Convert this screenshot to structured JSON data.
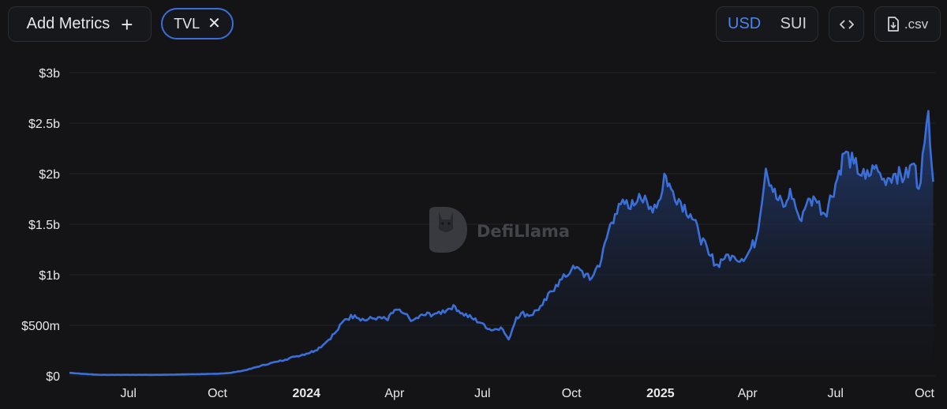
{
  "toolbar": {
    "add_metrics_label": "Add Metrics",
    "plus_icon": "+",
    "metric_chip_label": "TVL",
    "close_icon": "✕",
    "currency_options": [
      "USD",
      "SUI"
    ],
    "currency_selected": "USD",
    "embed_icon": "‹›",
    "csv_label": ".csv"
  },
  "watermark": {
    "text": "DefiLlama"
  },
  "colors": {
    "background": "#141417",
    "line": "#3b6fd8",
    "area_top": "#284b96",
    "grid": "#222328",
    "accent": "#4a84ef"
  },
  "chart_data": {
    "type": "area",
    "series": [
      {
        "x": [
          "2023-05-01",
          "2023-05-15",
          "2023-06-01",
          "2023-07-01",
          "2023-08-01",
          "2023-09-01",
          "2023-10-01",
          "2023-10-15",
          "2023-11-01",
          "2023-11-15",
          "2023-12-01",
          "2023-12-10",
          "2023-12-20",
          "2024-01-01",
          "2024-01-10",
          "2024-01-20",
          "2024-02-01",
          "2024-02-10",
          "2024-02-20",
          "2024-03-01",
          "2024-03-15",
          "2024-03-25",
          "2024-04-01",
          "2024-04-10",
          "2024-04-20",
          "2024-05-01",
          "2024-05-15",
          "2024-05-25",
          "2024-06-01",
          "2024-06-10",
          "2024-06-20",
          "2024-07-01",
          "2024-07-10",
          "2024-07-20",
          "2024-07-28",
          "2024-08-05",
          "2024-08-10",
          "2024-08-20",
          "2024-09-01",
          "2024-09-15",
          "2024-09-25",
          "2024-10-01",
          "2024-10-10",
          "2024-10-20",
          "2024-11-01",
          "2024-11-10",
          "2024-11-15",
          "2024-11-25",
          "2024-12-01",
          "2024-12-10",
          "2024-12-20",
          "2025-01-01",
          "2025-01-05",
          "2025-01-12",
          "2025-01-20",
          "2025-02-01",
          "2025-02-10",
          "2025-02-20",
          "2025-03-01",
          "2025-03-10",
          "2025-03-20",
          "2025-04-01",
          "2025-04-10",
          "2025-04-20",
          "2025-05-01",
          "2025-05-10",
          "2025-05-15",
          "2025-05-25",
          "2025-06-01",
          "2025-06-10",
          "2025-06-20",
          "2025-07-01",
          "2025-07-10",
          "2025-07-20",
          "2025-08-01",
          "2025-08-10",
          "2025-08-20",
          "2025-09-01",
          "2025-09-10",
          "2025-09-20",
          "2025-09-25",
          "2025-10-01",
          "2025-10-05",
          "2025-10-10"
        ],
        "y": [
          0.03,
          0.02,
          0.01,
          0.01,
          0.01,
          0.015,
          0.02,
          0.03,
          0.06,
          0.1,
          0.14,
          0.16,
          0.19,
          0.22,
          0.25,
          0.32,
          0.44,
          0.56,
          0.6,
          0.55,
          0.58,
          0.55,
          0.65,
          0.62,
          0.55,
          0.6,
          0.62,
          0.65,
          0.7,
          0.62,
          0.57,
          0.52,
          0.45,
          0.48,
          0.36,
          0.58,
          0.62,
          0.6,
          0.7,
          0.9,
          0.98,
          1.05,
          1.05,
          0.95,
          1.15,
          1.5,
          1.6,
          1.7,
          1.65,
          1.8,
          1.65,
          1.75,
          2.0,
          1.85,
          1.75,
          1.6,
          1.4,
          1.2,
          1.1,
          1.2,
          1.15,
          1.2,
          1.35,
          2.05,
          1.75,
          1.68,
          1.85,
          1.55,
          1.7,
          1.75,
          1.6,
          1.9,
          2.2,
          2.1,
          1.95,
          2.05,
          1.95,
          2.0,
          1.95,
          2.1,
          1.85,
          2.3,
          2.62,
          1.92
        ]
      }
    ],
    "x_ticks": [
      "Jul",
      "Oct",
      "2024",
      "Apr",
      "Jul",
      "Oct",
      "2025",
      "Apr",
      "Jul",
      "Oct"
    ],
    "y_ticks": [
      "$0",
      "$500m",
      "$1b",
      "$1.5b",
      "$2b",
      "$2.5b",
      "$3b"
    ],
    "y_unit": "billions USD",
    "ylim": [
      0,
      3
    ],
    "grid": true
  }
}
